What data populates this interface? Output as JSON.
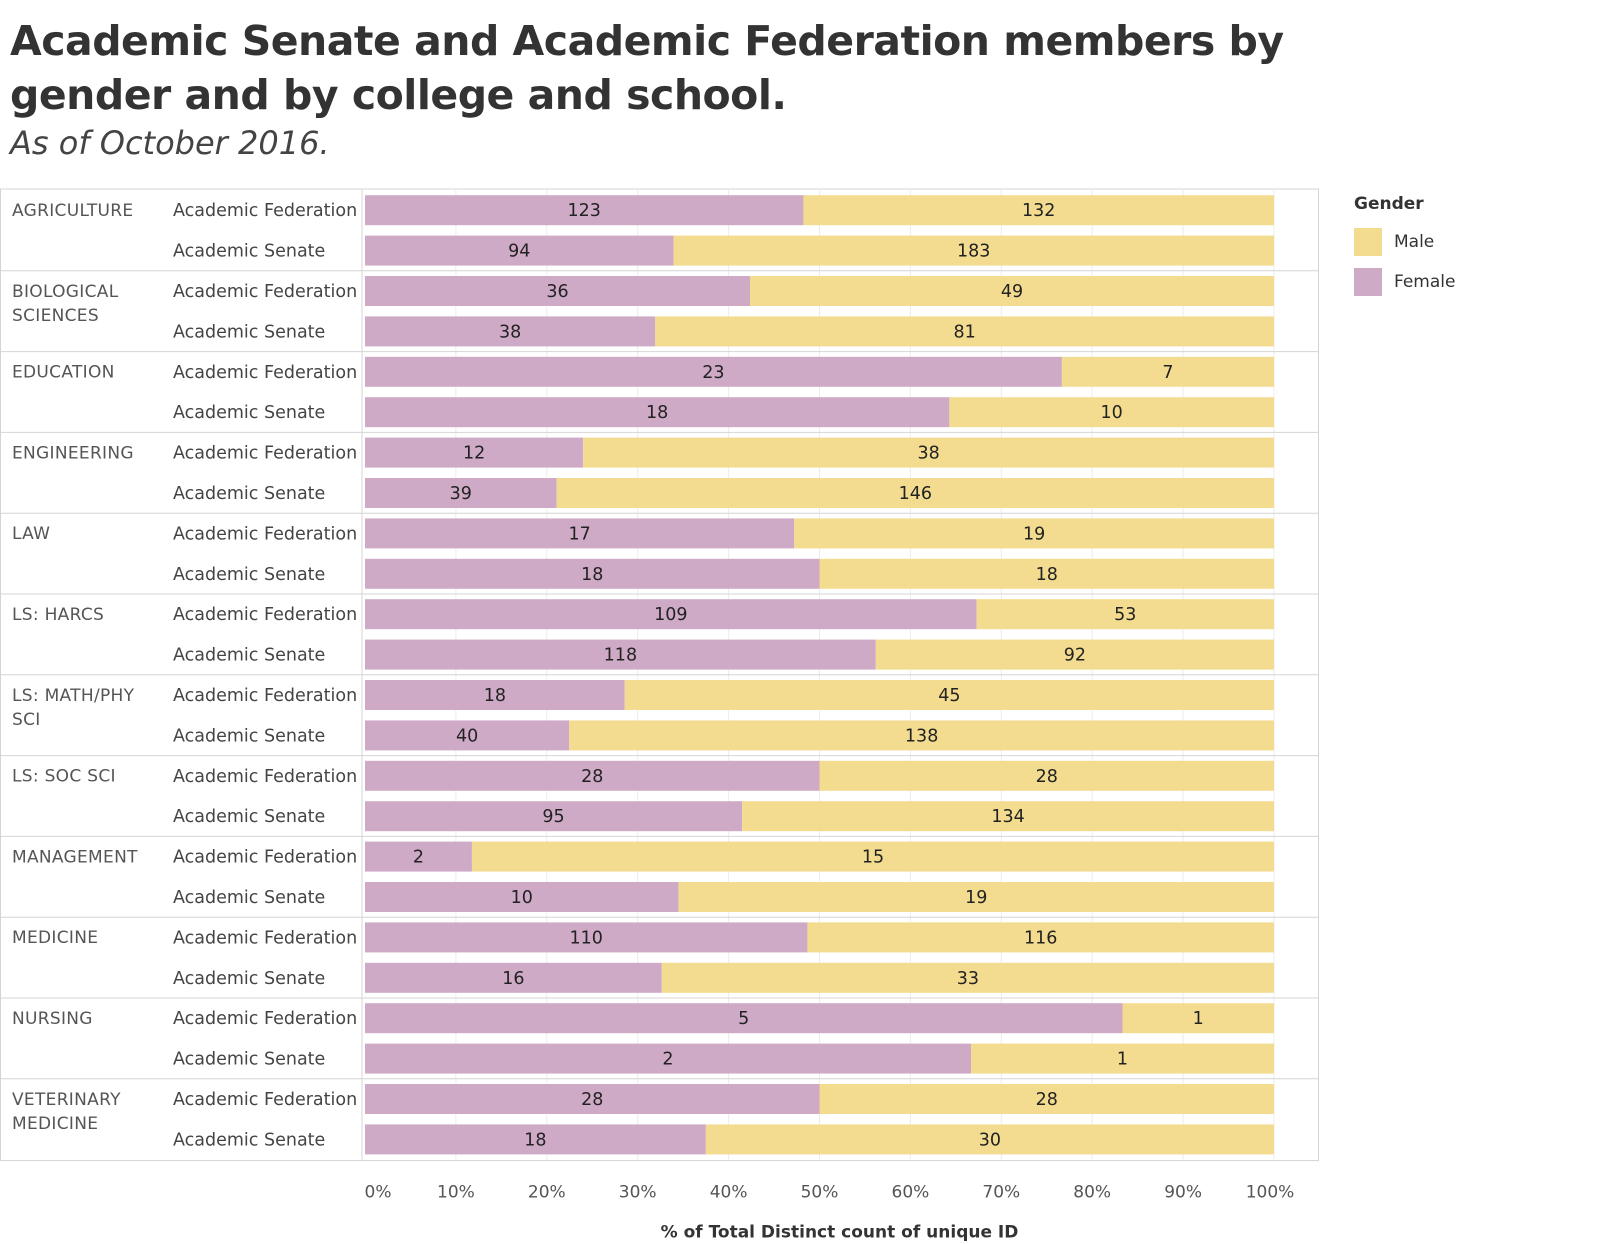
{
  "chart_data": {
    "type": "bar",
    "orientation": "horizontal",
    "stacked": "100%",
    "title": "Academic Senate and Academic Federation members by gender and by college and school.",
    "subtitle": "As of October 2016.",
    "xlabel": "% of Total Distinct count of unique ID",
    "xlim": [
      0,
      100
    ],
    "xticks": [
      "0%",
      "10%",
      "20%",
      "30%",
      "40%",
      "50%",
      "60%",
      "70%",
      "80%",
      "90%",
      "100%"
    ],
    "legend": {
      "title": "Gender",
      "position": "top-right",
      "items": [
        {
          "name": "Male",
          "color": "#f3dc8f"
        },
        {
          "name": "Female",
          "color": "#cfaac6"
        }
      ]
    },
    "colors": {
      "female": "#cfaac6",
      "male": "#f3dc8f"
    },
    "groups": [
      {
        "college": [
          "AGRICULTURE"
        ],
        "rows": [
          {
            "label": "Academic Federation",
            "female": 123,
            "male": 132
          },
          {
            "label": "Academic Senate",
            "female": 94,
            "male": 183
          }
        ]
      },
      {
        "college": [
          "BIOLOGICAL",
          "SCIENCES"
        ],
        "rows": [
          {
            "label": "Academic Federation",
            "female": 36,
            "male": 49
          },
          {
            "label": "Academic Senate",
            "female": 38,
            "male": 81
          }
        ]
      },
      {
        "college": [
          "EDUCATION"
        ],
        "rows": [
          {
            "label": "Academic Federation",
            "female": 23,
            "male": 7
          },
          {
            "label": "Academic Senate",
            "female": 18,
            "male": 10
          }
        ]
      },
      {
        "college": [
          "ENGINEERING"
        ],
        "rows": [
          {
            "label": "Academic Federation",
            "female": 12,
            "male": 38
          },
          {
            "label": "Academic Senate",
            "female": 39,
            "male": 146
          }
        ]
      },
      {
        "college": [
          "LAW"
        ],
        "rows": [
          {
            "label": "Academic Federation",
            "female": 17,
            "male": 19
          },
          {
            "label": "Academic Senate",
            "female": 18,
            "male": 18
          }
        ]
      },
      {
        "college": [
          "LS: HARCS"
        ],
        "rows": [
          {
            "label": "Academic Federation",
            "female": 109,
            "male": 53
          },
          {
            "label": "Academic Senate",
            "female": 118,
            "male": 92
          }
        ]
      },
      {
        "college": [
          "LS: MATH/PHY",
          "SCI"
        ],
        "rows": [
          {
            "label": "Academic Federation",
            "female": 18,
            "male": 45
          },
          {
            "label": "Academic Senate",
            "female": 40,
            "male": 138
          }
        ]
      },
      {
        "college": [
          "LS: SOC SCI"
        ],
        "rows": [
          {
            "label": "Academic Federation",
            "female": 28,
            "male": 28
          },
          {
            "label": "Academic Senate",
            "female": 95,
            "male": 134
          }
        ]
      },
      {
        "college": [
          "MANAGEMENT"
        ],
        "rows": [
          {
            "label": "Academic Federation",
            "female": 2,
            "male": 15
          },
          {
            "label": "Academic Senate",
            "female": 10,
            "male": 19
          }
        ]
      },
      {
        "college": [
          "MEDICINE"
        ],
        "rows": [
          {
            "label": "Academic Federation",
            "female": 110,
            "male": 116
          },
          {
            "label": "Academic Senate",
            "female": 16,
            "male": 33
          }
        ]
      },
      {
        "college": [
          "NURSING"
        ],
        "rows": [
          {
            "label": "Academic Federation",
            "female": 5,
            "male": 1
          },
          {
            "label": "Academic Senate",
            "female": 2,
            "male": 1
          }
        ]
      },
      {
        "college": [
          "VETERINARY",
          "MEDICINE"
        ],
        "rows": [
          {
            "label": "Academic Federation",
            "female": 28,
            "male": 28
          },
          {
            "label": "Academic Senate",
            "female": 18,
            "male": 30
          }
        ]
      }
    ]
  }
}
